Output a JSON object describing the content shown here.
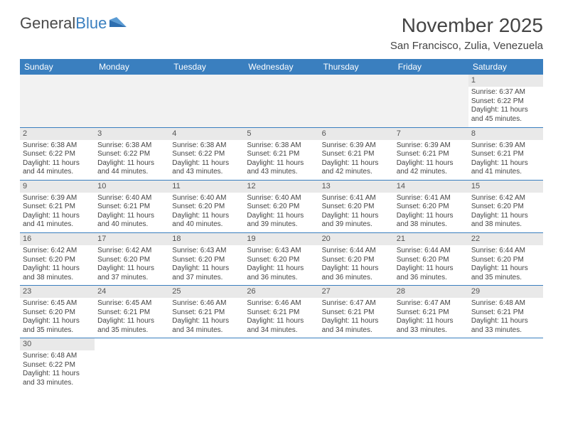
{
  "logo": {
    "text1": "General",
    "text2": "Blue"
  },
  "title": "November 2025",
  "location": "San Francisco, Zulia, Venezuela",
  "calendar": {
    "type": "table",
    "header_bg": "#3a7fbf",
    "header_fg": "#ffffff",
    "row_border_color": "#3a7fbf",
    "daynum_bg": "#e9e9e9",
    "empty_bg": "#f2f2f2",
    "text_color": "#444444",
    "font_family": "Arial",
    "daynum_fontsize": 11,
    "content_fontsize": 10,
    "columns": [
      "Sunday",
      "Monday",
      "Tuesday",
      "Wednesday",
      "Thursday",
      "Friday",
      "Saturday"
    ],
    "first_day_column": 6,
    "days": [
      {
        "n": 1,
        "sunrise": "6:37 AM",
        "sunset": "6:22 PM",
        "daylight": "11 hours and 45 minutes."
      },
      {
        "n": 2,
        "sunrise": "6:38 AM",
        "sunset": "6:22 PM",
        "daylight": "11 hours and 44 minutes."
      },
      {
        "n": 3,
        "sunrise": "6:38 AM",
        "sunset": "6:22 PM",
        "daylight": "11 hours and 44 minutes."
      },
      {
        "n": 4,
        "sunrise": "6:38 AM",
        "sunset": "6:22 PM",
        "daylight": "11 hours and 43 minutes."
      },
      {
        "n": 5,
        "sunrise": "6:38 AM",
        "sunset": "6:21 PM",
        "daylight": "11 hours and 43 minutes."
      },
      {
        "n": 6,
        "sunrise": "6:39 AM",
        "sunset": "6:21 PM",
        "daylight": "11 hours and 42 minutes."
      },
      {
        "n": 7,
        "sunrise": "6:39 AM",
        "sunset": "6:21 PM",
        "daylight": "11 hours and 42 minutes."
      },
      {
        "n": 8,
        "sunrise": "6:39 AM",
        "sunset": "6:21 PM",
        "daylight": "11 hours and 41 minutes."
      },
      {
        "n": 9,
        "sunrise": "6:39 AM",
        "sunset": "6:21 PM",
        "daylight": "11 hours and 41 minutes."
      },
      {
        "n": 10,
        "sunrise": "6:40 AM",
        "sunset": "6:21 PM",
        "daylight": "11 hours and 40 minutes."
      },
      {
        "n": 11,
        "sunrise": "6:40 AM",
        "sunset": "6:20 PM",
        "daylight": "11 hours and 40 minutes."
      },
      {
        "n": 12,
        "sunrise": "6:40 AM",
        "sunset": "6:20 PM",
        "daylight": "11 hours and 39 minutes."
      },
      {
        "n": 13,
        "sunrise": "6:41 AM",
        "sunset": "6:20 PM",
        "daylight": "11 hours and 39 minutes."
      },
      {
        "n": 14,
        "sunrise": "6:41 AM",
        "sunset": "6:20 PM",
        "daylight": "11 hours and 38 minutes."
      },
      {
        "n": 15,
        "sunrise": "6:42 AM",
        "sunset": "6:20 PM",
        "daylight": "11 hours and 38 minutes."
      },
      {
        "n": 16,
        "sunrise": "6:42 AM",
        "sunset": "6:20 PM",
        "daylight": "11 hours and 38 minutes."
      },
      {
        "n": 17,
        "sunrise": "6:42 AM",
        "sunset": "6:20 PM",
        "daylight": "11 hours and 37 minutes."
      },
      {
        "n": 18,
        "sunrise": "6:43 AM",
        "sunset": "6:20 PM",
        "daylight": "11 hours and 37 minutes."
      },
      {
        "n": 19,
        "sunrise": "6:43 AM",
        "sunset": "6:20 PM",
        "daylight": "11 hours and 36 minutes."
      },
      {
        "n": 20,
        "sunrise": "6:44 AM",
        "sunset": "6:20 PM",
        "daylight": "11 hours and 36 minutes."
      },
      {
        "n": 21,
        "sunrise": "6:44 AM",
        "sunset": "6:20 PM",
        "daylight": "11 hours and 36 minutes."
      },
      {
        "n": 22,
        "sunrise": "6:44 AM",
        "sunset": "6:20 PM",
        "daylight": "11 hours and 35 minutes."
      },
      {
        "n": 23,
        "sunrise": "6:45 AM",
        "sunset": "6:20 PM",
        "daylight": "11 hours and 35 minutes."
      },
      {
        "n": 24,
        "sunrise": "6:45 AM",
        "sunset": "6:21 PM",
        "daylight": "11 hours and 35 minutes."
      },
      {
        "n": 25,
        "sunrise": "6:46 AM",
        "sunset": "6:21 PM",
        "daylight": "11 hours and 34 minutes."
      },
      {
        "n": 26,
        "sunrise": "6:46 AM",
        "sunset": "6:21 PM",
        "daylight": "11 hours and 34 minutes."
      },
      {
        "n": 27,
        "sunrise": "6:47 AM",
        "sunset": "6:21 PM",
        "daylight": "11 hours and 34 minutes."
      },
      {
        "n": 28,
        "sunrise": "6:47 AM",
        "sunset": "6:21 PM",
        "daylight": "11 hours and 33 minutes."
      },
      {
        "n": 29,
        "sunrise": "6:48 AM",
        "sunset": "6:21 PM",
        "daylight": "11 hours and 33 minutes."
      },
      {
        "n": 30,
        "sunrise": "6:48 AM",
        "sunset": "6:22 PM",
        "daylight": "11 hours and 33 minutes."
      }
    ],
    "labels": {
      "sunrise": "Sunrise:",
      "sunset": "Sunset:",
      "daylight": "Daylight:"
    }
  }
}
